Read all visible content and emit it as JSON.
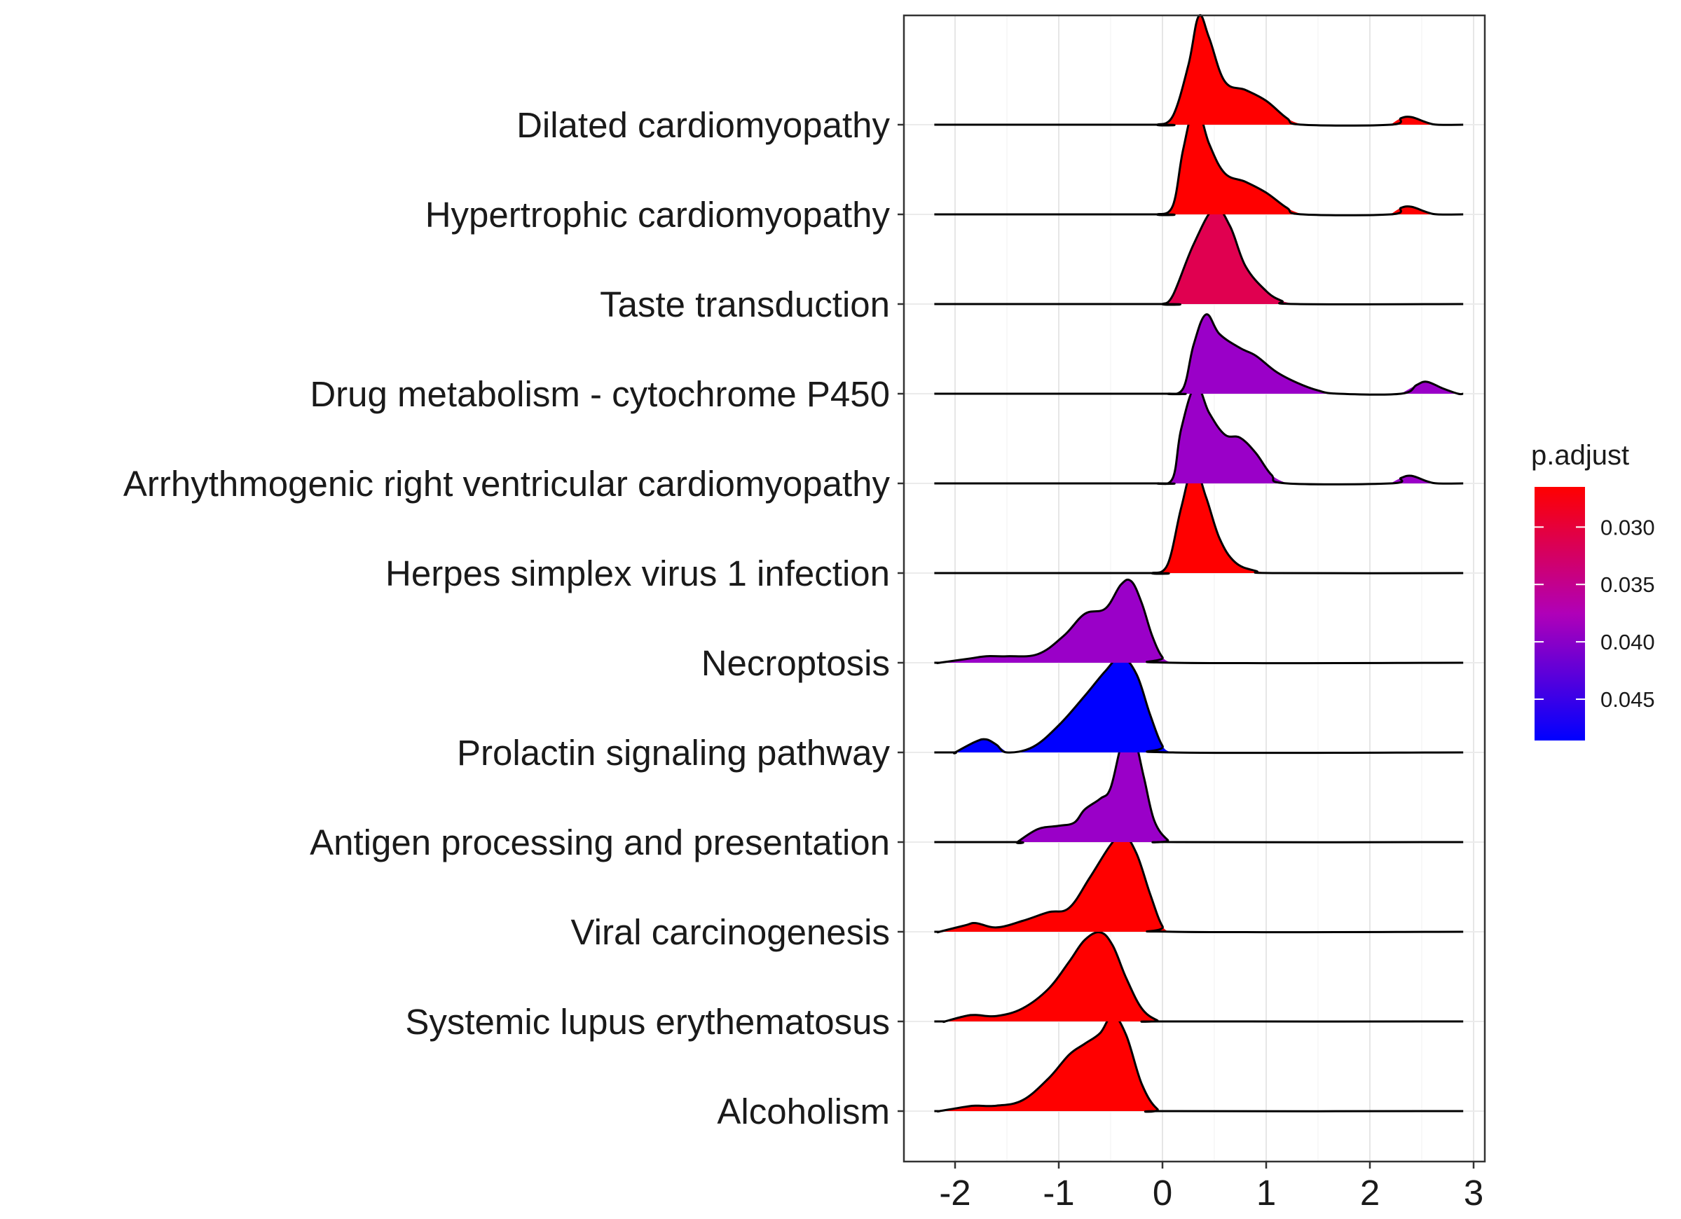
{
  "chart_data": {
    "type": "ridgeline",
    "title": "",
    "xlabel": "",
    "ylabel": "",
    "xlim": [
      -2.4,
      3.15
    ],
    "x_ticks": [
      "-2",
      "-1",
      "0",
      "1",
      "2",
      "3"
    ],
    "x_tick_values": [
      -2,
      -1,
      0,
      1,
      2,
      3
    ],
    "grid": true,
    "legend": {
      "title": "p.adjust",
      "placement": "right",
      "ticks": [
        "0.030",
        "0.035",
        "0.040",
        "0.045"
      ],
      "tick_values": [
        0.03,
        0.035,
        0.04,
        0.045
      ],
      "range": [
        0.0265,
        0.0486
      ],
      "low_color": "#ff0000",
      "high_color": "#0000ff"
    },
    "categories": [
      "Dilated cardiomyopathy",
      "Hypertrophic cardiomyopathy",
      "Taste transduction",
      "Drug metabolism - cytochrome P450",
      "Arrhythmogenic right ventricular cardiomyopathy",
      "Herpes simplex virus 1 infection",
      "Necroptosis",
      "Prolactin signaling pathway",
      "Antigen processing and presentation",
      "Viral carcinogenesis",
      "Systemic lupus erythematosus",
      "Alcoholism"
    ],
    "series": [
      {
        "name": "Dilated cardiomyopathy",
        "p_adjust": 0.0268,
        "color": "#ff0000",
        "x_range": [
          -2.2,
          2.9
        ],
        "density": [
          [
            -0.05,
            0
          ],
          [
            0.1,
            0.08
          ],
          [
            0.25,
            0.55
          ],
          [
            0.35,
            1.0
          ],
          [
            0.45,
            0.8
          ],
          [
            0.6,
            0.4
          ],
          [
            0.8,
            0.32
          ],
          [
            1.0,
            0.22
          ],
          [
            1.2,
            0.06
          ],
          [
            1.35,
            0
          ],
          [
            2.2,
            0
          ],
          [
            2.3,
            0.06
          ],
          [
            2.4,
            0.07
          ],
          [
            2.55,
            0.02
          ],
          [
            2.65,
            0
          ]
        ]
      },
      {
        "name": "Hypertrophic cardiomyopathy",
        "p_adjust": 0.0268,
        "color": "#ff0000",
        "x_range": [
          -2.2,
          2.9
        ],
        "density": [
          [
            -0.05,
            0
          ],
          [
            0.1,
            0.08
          ],
          [
            0.2,
            0.6
          ],
          [
            0.32,
            1.0
          ],
          [
            0.45,
            0.65
          ],
          [
            0.6,
            0.38
          ],
          [
            0.8,
            0.3
          ],
          [
            1.0,
            0.2
          ],
          [
            1.2,
            0.06
          ],
          [
            1.35,
            0
          ],
          [
            2.2,
            0
          ],
          [
            2.3,
            0.06
          ],
          [
            2.4,
            0.07
          ],
          [
            2.55,
            0.02
          ],
          [
            2.65,
            0
          ]
        ]
      },
      {
        "name": "Taste transduction",
        "p_adjust": 0.0345,
        "color": "#e00050",
        "x_range": [
          -2.2,
          2.9
        ],
        "density": [
          [
            0.0,
            0
          ],
          [
            0.1,
            0.08
          ],
          [
            0.3,
            0.55
          ],
          [
            0.5,
            0.88
          ],
          [
            0.65,
            0.72
          ],
          [
            0.8,
            0.35
          ],
          [
            1.0,
            0.12
          ],
          [
            1.15,
            0.03
          ],
          [
            1.3,
            0
          ]
        ]
      },
      {
        "name": "Drug metabolism - cytochrome P450",
        "p_adjust": 0.042,
        "color": "#9a00c8",
        "x_range": [
          -2.2,
          2.9
        ],
        "density": [
          [
            0.05,
            0
          ],
          [
            0.2,
            0.05
          ],
          [
            0.3,
            0.45
          ],
          [
            0.42,
            0.73
          ],
          [
            0.55,
            0.55
          ],
          [
            0.75,
            0.42
          ],
          [
            0.9,
            0.35
          ],
          [
            1.1,
            0.2
          ],
          [
            1.3,
            0.1
          ],
          [
            1.5,
            0.03
          ],
          [
            1.7,
            0
          ],
          [
            2.3,
            0
          ],
          [
            2.45,
            0.08
          ],
          [
            2.55,
            0.11
          ],
          [
            2.7,
            0.05
          ],
          [
            2.85,
            0
          ]
        ]
      },
      {
        "name": "Arrhythmogenic right ventricular cardiomyopathy",
        "p_adjust": 0.042,
        "color": "#9a00c8",
        "x_range": [
          -2.2,
          2.9
        ],
        "density": [
          [
            -0.05,
            0
          ],
          [
            0.1,
            0.05
          ],
          [
            0.18,
            0.5
          ],
          [
            0.32,
            0.9
          ],
          [
            0.45,
            0.65
          ],
          [
            0.6,
            0.45
          ],
          [
            0.75,
            0.42
          ],
          [
            0.9,
            0.28
          ],
          [
            1.05,
            0.08
          ],
          [
            1.2,
            0
          ],
          [
            2.2,
            0
          ],
          [
            2.3,
            0.05
          ],
          [
            2.4,
            0.07
          ],
          [
            2.55,
            0.02
          ],
          [
            2.65,
            0
          ]
        ]
      },
      {
        "name": "Herpes simplex virus 1 infection",
        "p_adjust": 0.0268,
        "color": "#ff0000",
        "x_range": [
          -2.2,
          2.9
        ],
        "density": [
          [
            -0.1,
            0
          ],
          [
            0.05,
            0.08
          ],
          [
            0.18,
            0.6
          ],
          [
            0.3,
            0.98
          ],
          [
            0.42,
            0.7
          ],
          [
            0.55,
            0.32
          ],
          [
            0.7,
            0.1
          ],
          [
            0.9,
            0.02
          ],
          [
            1.1,
            0
          ]
        ]
      },
      {
        "name": "Necroptosis",
        "p_adjust": 0.042,
        "color": "#9a00c8",
        "x_range": [
          -2.2,
          2.9
        ],
        "density": [
          [
            -2.15,
            0
          ],
          [
            -1.85,
            0.04
          ],
          [
            -1.7,
            0.06
          ],
          [
            -1.5,
            0.06
          ],
          [
            -1.2,
            0.08
          ],
          [
            -0.95,
            0.25
          ],
          [
            -0.75,
            0.45
          ],
          [
            -0.55,
            0.5
          ],
          [
            -0.4,
            0.72
          ],
          [
            -0.3,
            0.75
          ],
          [
            -0.2,
            0.55
          ],
          [
            -0.1,
            0.25
          ],
          [
            0.0,
            0.05
          ],
          [
            0.1,
            0
          ]
        ]
      },
      {
        "name": "Prolactin signaling pathway",
        "p_adjust": 0.0486,
        "color": "#0000ff",
        "x_range": [
          -2.2,
          2.9
        ],
        "density": [
          [
            -2.0,
            0
          ],
          [
            -1.8,
            0.1
          ],
          [
            -1.7,
            0.12
          ],
          [
            -1.6,
            0.07
          ],
          [
            -1.5,
            0.0
          ],
          [
            -1.25,
            0.05
          ],
          [
            -1.0,
            0.25
          ],
          [
            -0.75,
            0.52
          ],
          [
            -0.55,
            0.75
          ],
          [
            -0.4,
            0.88
          ],
          [
            -0.25,
            0.72
          ],
          [
            -0.12,
            0.35
          ],
          [
            0.0,
            0.06
          ],
          [
            0.1,
            0
          ]
        ]
      },
      {
        "name": "Antigen processing and presentation",
        "p_adjust": 0.042,
        "color": "#9a00c8",
        "x_range": [
          -2.2,
          2.9
        ],
        "density": [
          [
            -1.4,
            0
          ],
          [
            -1.2,
            0.12
          ],
          [
            -1.0,
            0.15
          ],
          [
            -0.85,
            0.18
          ],
          [
            -0.75,
            0.3
          ],
          [
            -0.6,
            0.4
          ],
          [
            -0.5,
            0.5
          ],
          [
            -0.38,
            0.95
          ],
          [
            -0.28,
            0.98
          ],
          [
            -0.18,
            0.6
          ],
          [
            -0.08,
            0.2
          ],
          [
            0.05,
            0.02
          ],
          [
            0.15,
            0
          ]
        ]
      },
      {
        "name": "Viral carcinogenesis",
        "p_adjust": 0.0268,
        "color": "#ff0000",
        "x_range": [
          -2.2,
          2.9
        ],
        "density": [
          [
            -2.15,
            0
          ],
          [
            -1.9,
            0.06
          ],
          [
            -1.8,
            0.08
          ],
          [
            -1.6,
            0.04
          ],
          [
            -1.35,
            0.1
          ],
          [
            -1.1,
            0.18
          ],
          [
            -0.9,
            0.22
          ],
          [
            -0.7,
            0.5
          ],
          [
            -0.5,
            0.8
          ],
          [
            -0.38,
            0.9
          ],
          [
            -0.25,
            0.72
          ],
          [
            -0.12,
            0.35
          ],
          [
            0.0,
            0.05
          ],
          [
            0.1,
            0
          ]
        ]
      },
      {
        "name": "Systemic lupus erythematosus",
        "p_adjust": 0.0268,
        "color": "#ff0000",
        "x_range": [
          -2.2,
          2.9
        ],
        "density": [
          [
            -2.1,
            0
          ],
          [
            -1.9,
            0.05
          ],
          [
            -1.8,
            0.06
          ],
          [
            -1.6,
            0.05
          ],
          [
            -1.35,
            0.12
          ],
          [
            -1.1,
            0.3
          ],
          [
            -0.9,
            0.55
          ],
          [
            -0.75,
            0.75
          ],
          [
            -0.6,
            0.82
          ],
          [
            -0.48,
            0.7
          ],
          [
            -0.35,
            0.4
          ],
          [
            -0.2,
            0.12
          ],
          [
            -0.05,
            0.01
          ],
          [
            0.05,
            0
          ]
        ]
      },
      {
        "name": "Alcoholism",
        "p_adjust": 0.0268,
        "color": "#ff0000",
        "x_range": [
          -2.2,
          2.9
        ],
        "density": [
          [
            -2.15,
            0
          ],
          [
            -1.9,
            0.04
          ],
          [
            -1.8,
            0.05
          ],
          [
            -1.6,
            0.05
          ],
          [
            -1.35,
            0.1
          ],
          [
            -1.1,
            0.3
          ],
          [
            -0.9,
            0.52
          ],
          [
            -0.75,
            0.62
          ],
          [
            -0.6,
            0.72
          ],
          [
            -0.48,
            0.88
          ],
          [
            -0.35,
            0.7
          ],
          [
            -0.2,
            0.25
          ],
          [
            -0.05,
            0.02
          ],
          [
            0.1,
            0
          ]
        ]
      }
    ]
  }
}
